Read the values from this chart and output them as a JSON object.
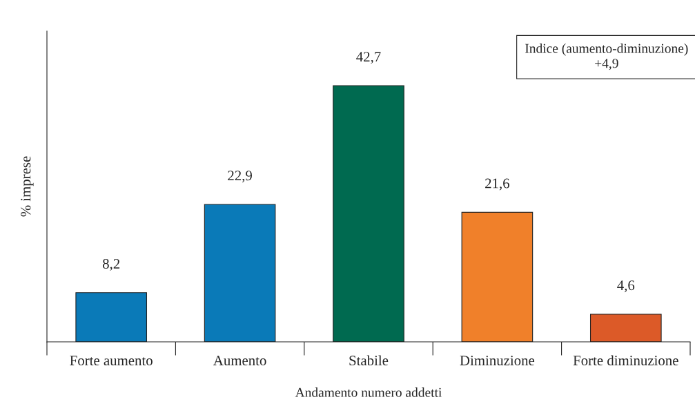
{
  "chart_data": {
    "type": "bar",
    "xlabel": "Andamento numero addetti",
    "ylabel": "% imprese",
    "categories": [
      "Forte aumento",
      "Aumento",
      "Stabile",
      "Diminuzione",
      "Forte diminuzione"
    ],
    "values": [
      8.2,
      22.9,
      42.7,
      21.6,
      4.6
    ],
    "colors": [
      "#0a7ab8",
      "#0a7ab8",
      "#006a50",
      "#f0802a",
      "#dc5a28"
    ],
    "value_labels": [
      "8,2",
      "22,9",
      "42,7",
      "21,6",
      "4,6"
    ],
    "annotations": [
      "Indice (aumento-diminuzione)\n+4,9"
    ],
    "grid": false,
    "legend": false
  }
}
